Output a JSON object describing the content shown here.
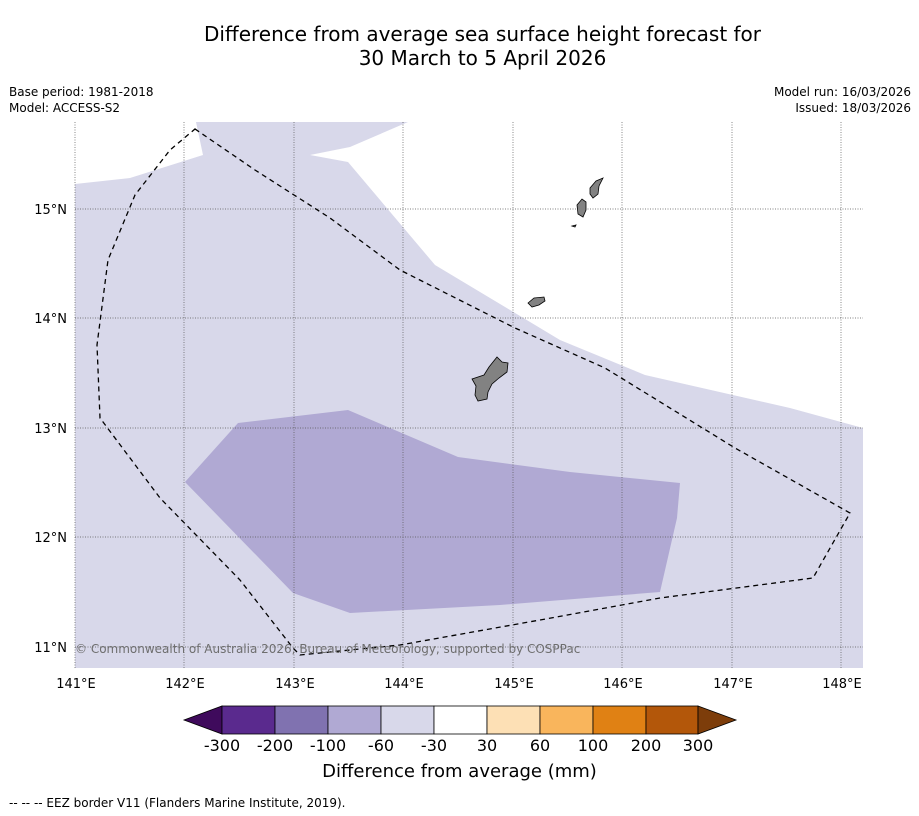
{
  "title": {
    "line1": "Difference from average sea surface height forecast for",
    "line2": "30 March to 5 April 2026"
  },
  "meta": {
    "base_period": "Base period: 1981-2018",
    "model": "Model: ACCESS-S2",
    "model_run": "Model run: 16/03/2026",
    "issued": "Issued: 18/03/2026"
  },
  "map": {
    "lon_range": [
      141.0,
      148.2
    ],
    "lat_range": [
      10.8,
      15.8
    ],
    "lon_ticks": [
      "141°E",
      "142°E",
      "143°E",
      "144°E",
      "145°E",
      "146°E",
      "147°E",
      "148°E"
    ],
    "lat_ticks": [
      "15°N",
      "14°N",
      "13°N",
      "12°N",
      "11°N"
    ],
    "copyright": "© Commonwealth of Australia 2026, Bureau of Meteorology, supported by COSPPac",
    "anomaly_zones": [
      {
        "category": "-30 to -60 mm",
        "color": "#d8d8ea"
      },
      {
        "category": "-60 to -100 mm",
        "color": "#b0a9d3"
      }
    ],
    "land_color": "#828282",
    "eez_border": "dashed"
  },
  "colorbar": {
    "labels": [
      "-300",
      "-200",
      "-100",
      "-60",
      "-30",
      "30",
      "60",
      "100",
      "200",
      "300"
    ],
    "colors": [
      "#3f0a5c",
      "#5a2a8e",
      "#8072b0",
      "#b0a9d3",
      "#d8d8ea",
      "#ffffff",
      "#fde0b5",
      "#f9b55c",
      "#e08114",
      "#b3570a",
      "#7d3d0a"
    ],
    "title": "Difference from average (mm)"
  },
  "footer": {
    "text": "--  --  -- EEZ border V11 (Flanders Marine Institute, 2019)."
  }
}
